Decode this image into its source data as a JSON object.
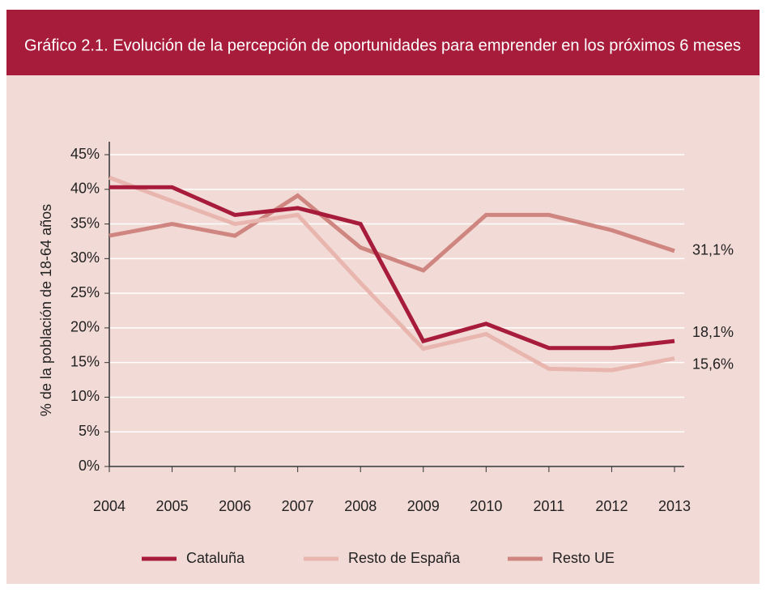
{
  "chart_data": {
    "type": "line",
    "title": "Gráfico 2.1. Evolución de la percepción de oportunidades para emprender en los próximos 6 meses",
    "y_label": "% de la población de 18-64 años",
    "categories": [
      "2004",
      "2005",
      "2006",
      "2007",
      "2008",
      "2009",
      "2010",
      "2011",
      "2012",
      "2013"
    ],
    "series": [
      {
        "name": "Cataluña",
        "color": "#a81c3b",
        "values": [
          40.3,
          40.3,
          36.3,
          37.3,
          35.0,
          18.1,
          20.6,
          17.1,
          17.1,
          18.1
        ],
        "value_labels": [
          null,
          null,
          null,
          null,
          null,
          null,
          null,
          null,
          null,
          "18,1%"
        ]
      },
      {
        "name": "Resto de España",
        "color": "#e8b6ae",
        "values": [
          41.7,
          38.3,
          35.0,
          36.3,
          26.5,
          17.0,
          19.1,
          14.1,
          13.9,
          15.6
        ],
        "value_labels": [
          null,
          null,
          null,
          null,
          null,
          null,
          null,
          null,
          null,
          "15,6%"
        ]
      },
      {
        "name": "Resto UE",
        "color": "#cf8580",
        "values": [
          33.3,
          35.0,
          33.3,
          39.1,
          31.6,
          28.3,
          36.3,
          36.3,
          34.1,
          31.1
        ],
        "value_labels": [
          null,
          null,
          null,
          null,
          null,
          null,
          null,
          null,
          null,
          "31,1%"
        ]
      }
    ],
    "ylim": [
      0,
      45
    ],
    "yticks": [
      {
        "value": 0,
        "label": "0%"
      },
      {
        "value": 5,
        "label": "5%"
      },
      {
        "value": 10,
        "label": "10%"
      },
      {
        "value": 15,
        "label": "15%"
      },
      {
        "value": 20,
        "label": "20%"
      },
      {
        "value": 25,
        "label": "25%"
      },
      {
        "value": 30,
        "label": "30%"
      },
      {
        "value": 35,
        "label": "35%"
      },
      {
        "value": 40,
        "label": "40%"
      },
      {
        "value": 45,
        "label": "45%"
      }
    ],
    "grid": true,
    "legend": "bottom"
  }
}
